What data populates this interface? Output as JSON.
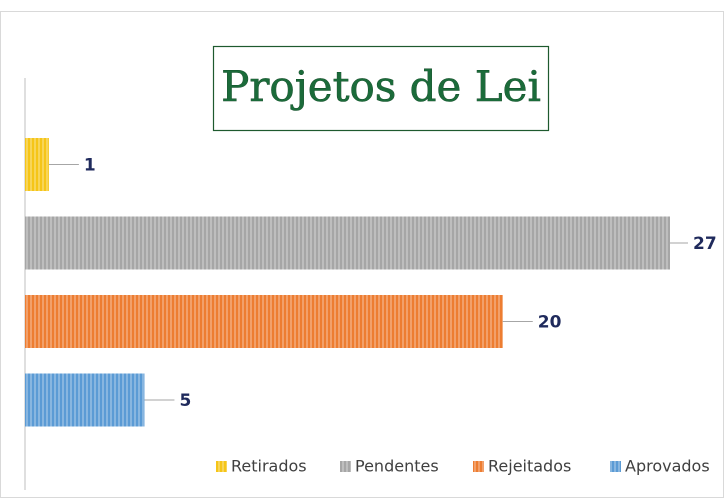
{
  "chart_data": {
    "type": "bar",
    "orientation": "horizontal",
    "title": "Projetos de Lei",
    "categories": [
      "Retirados",
      "Pendentes",
      "Rejeitados",
      "Aprovados"
    ],
    "values": [
      1,
      27,
      20,
      5
    ],
    "colors": [
      "#f5c518",
      "#a6a6a6",
      "#ed7d31",
      "#5b9bd5"
    ],
    "legend": "bottom"
  }
}
